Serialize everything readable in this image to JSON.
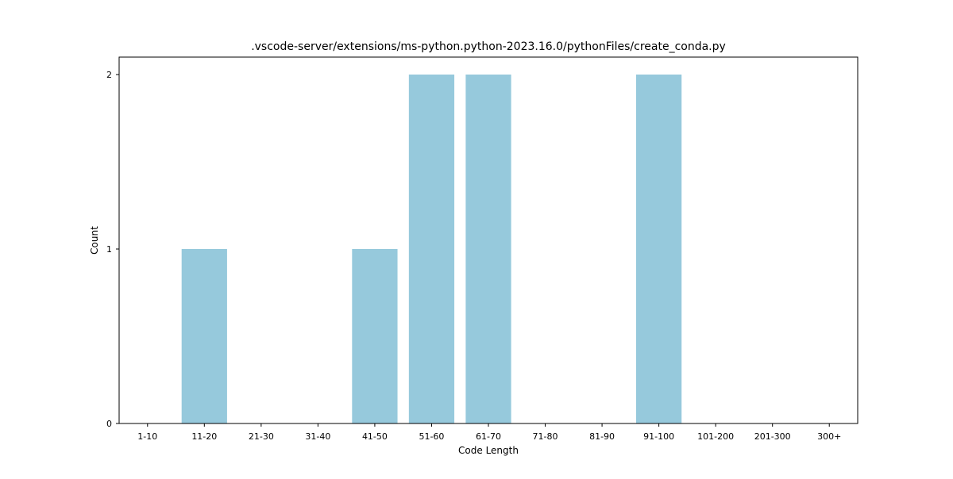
{
  "chart_data": {
    "type": "bar",
    "title": ".vscode-server/extensions/ms-python.python-2023.16.0/pythonFiles/create_conda.py",
    "xlabel": "Code Length",
    "ylabel": "Count",
    "categories": [
      "1-10",
      "11-20",
      "21-30",
      "31-40",
      "41-50",
      "51-60",
      "61-70",
      "71-80",
      "81-90",
      "91-100",
      "101-200",
      "201-300",
      "300+"
    ],
    "values": [
      0,
      1,
      0,
      0,
      1,
      2,
      2,
      0,
      0,
      2,
      0,
      0,
      0
    ],
    "yticks": [
      "0",
      "1",
      "2"
    ],
    "ylim": [
      0,
      2.1
    ],
    "grid": false,
    "legend": "none",
    "bar_color": "#96c9dc"
  }
}
